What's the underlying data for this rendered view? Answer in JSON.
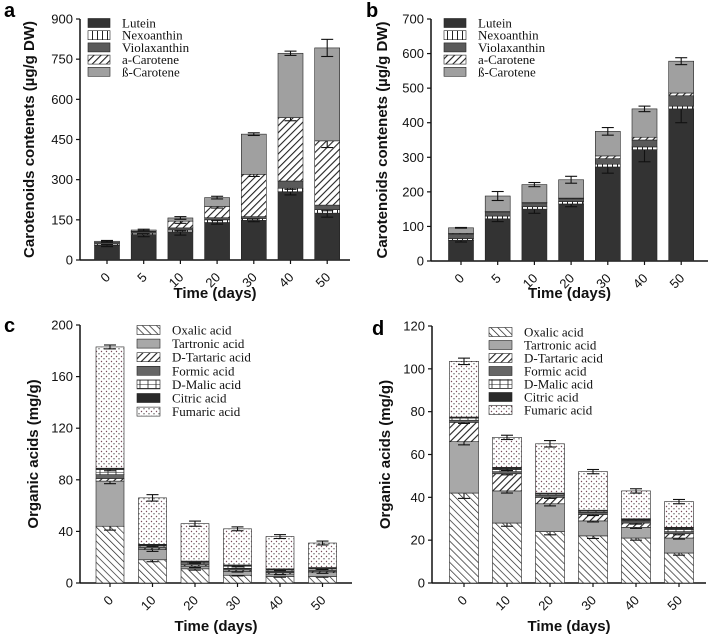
{
  "chart_data": [
    {
      "panel": "a",
      "type": "bar",
      "stacked": true,
      "title": "",
      "xlabel": "Time (days)",
      "ylabel": "Carotenoids contenets (µg/g DW)",
      "ylim": [
        0,
        900
      ],
      "yticks": [
        0,
        150,
        300,
        450,
        600,
        750,
        900
      ],
      "categories": [
        "0",
        "5",
        "10",
        "20",
        "30",
        "40",
        "50"
      ],
      "legend_position": "top-left",
      "series": [
        {
          "name": "Lutein",
          "fill": "#333333",
          "pattern": "solid",
          "values": [
            55,
            95,
            105,
            140,
            148,
            255,
            175
          ],
          "error": [
            5,
            8,
            12,
            6,
            5,
            12,
            15
          ]
        },
        {
          "name": "Nexoanthin",
          "fill": "#ffffff",
          "pattern": "vertical-lines",
          "values": [
            5,
            5,
            7,
            10,
            7,
            13,
            13
          ],
          "error": [
            2,
            2,
            3,
            3,
            2,
            4,
            4
          ]
        },
        {
          "name": "Violaxanthin",
          "fill": "#5a5a5a",
          "pattern": "solid",
          "values": [
            5,
            5,
            8,
            8,
            7,
            27,
            17
          ],
          "error": [
            0,
            0,
            0,
            0,
            0,
            0,
            0
          ]
        },
        {
          "name": "a-Carotene",
          "fill": "#ffffff",
          "pattern": "diagonal-hatch",
          "values": [
            0,
            2,
            25,
            42,
            158,
            237,
            240
          ],
          "error": [
            0,
            0,
            8,
            6,
            8,
            12,
            25
          ]
        },
        {
          "name": "ß-Carotene",
          "fill": "#a0a0a0",
          "pattern": "solid",
          "values": [
            5,
            5,
            12,
            33,
            150,
            240,
            347
          ],
          "error": [
            3,
            3,
            5,
            5,
            5,
            8,
            32
          ]
        }
      ]
    },
    {
      "panel": "b",
      "type": "bar",
      "stacked": true,
      "title": "",
      "xlabel": "Time (days)",
      "ylabel": "Carotenoids contenets (µg/g DW)",
      "ylim": [
        0,
        700
      ],
      "yticks": [
        0,
        100,
        200,
        300,
        400,
        500,
        600,
        700
      ],
      "categories": [
        "0",
        "5",
        "10",
        "20",
        "30",
        "40",
        "50"
      ],
      "legend_position": "top-left",
      "series": [
        {
          "name": "Lutein",
          "fill": "#333333",
          "pattern": "solid",
          "values": [
            60,
            122,
            150,
            165,
            272,
            322,
            440
          ],
          "error": [
            5,
            8,
            12,
            8,
            18,
            35,
            40
          ]
        },
        {
          "name": "Nexoanthin",
          "fill": "#ffffff",
          "pattern": "vertical-lines",
          "values": [
            5,
            8,
            7,
            7,
            8,
            8,
            8
          ],
          "error": [
            0,
            0,
            0,
            0,
            0,
            0,
            0
          ]
        },
        {
          "name": "Violaxanthin",
          "fill": "#5a5a5a",
          "pattern": "solid",
          "values": [
            13,
            12,
            11,
            8,
            16,
            20,
            30
          ],
          "error": [
            0,
            0,
            0,
            0,
            0,
            0,
            0
          ]
        },
        {
          "name": "a-Carotene",
          "fill": "#ffffff",
          "pattern": "diagonal-hatch",
          "values": [
            2,
            1,
            1,
            2,
            8,
            8,
            8
          ],
          "error": [
            0,
            0,
            0,
            0,
            0,
            0,
            0
          ]
        },
        {
          "name": "ß-Carotene",
          "fill": "#a0a0a0",
          "pattern": "solid",
          "values": [
            16,
            45,
            52,
            53,
            71,
            82,
            92
          ],
          "error": [
            1,
            13,
            6,
            10,
            11,
            8,
            10
          ]
        }
      ]
    },
    {
      "panel": "c",
      "type": "bar",
      "stacked": true,
      "title": "",
      "xlabel": "Time (days)",
      "ylabel": "Organic acids (mg/g)",
      "ylim": [
        0,
        200
      ],
      "yticks": [
        0,
        40,
        80,
        120,
        160,
        200
      ],
      "categories": [
        "0",
        "10",
        "20",
        "30",
        "40",
        "50"
      ],
      "legend_position": "top-center",
      "series": [
        {
          "name": "Oxalic acid",
          "fill": "#ffffff",
          "pattern": "back-diagonal-hatch",
          "values": [
            44,
            18,
            11,
            6,
            5,
            5
          ],
          "error": [
            3,
            1.5,
            1,
            0.5,
            0.5,
            0.5
          ]
        },
        {
          "name": "Tartronic acid",
          "fill": "#a8a8a8",
          "pattern": "solid",
          "values": [
            35,
            8,
            2,
            3,
            2,
            3
          ],
          "error": [
            2,
            1.5,
            1,
            0.5,
            0.5,
            0.5
          ]
        },
        {
          "name": "D-Tartaric acid",
          "fill": "#ffffff",
          "pattern": "diagonal-hatch",
          "values": [
            2,
            1,
            1,
            1,
            1,
            1
          ],
          "error": [
            0,
            0,
            0,
            0,
            0,
            0
          ]
        },
        {
          "name": "Formic acid",
          "fill": "#666666",
          "pattern": "solid",
          "values": [
            3,
            1,
            1,
            1,
            1,
            1
          ],
          "error": [
            0,
            0,
            0,
            0,
            0,
            0
          ]
        },
        {
          "name": "D-Malic acid",
          "fill": "#ffffff",
          "pattern": "brick",
          "values": [
            4,
            1,
            1,
            2,
            1,
            1
          ],
          "error": [
            1,
            0.5,
            0.5,
            0.5,
            0.5,
            0.5
          ]
        },
        {
          "name": "Citric acid",
          "fill": "#2a2a2a",
          "pattern": "solid",
          "values": [
            1,
            1,
            1,
            1,
            1,
            1
          ],
          "error": [
            0,
            0,
            0,
            0,
            0,
            0
          ]
        },
        {
          "name": "Fumaric acid",
          "fill": "#ffffff",
          "pattern": "dots",
          "values": [
            94,
            36,
            29,
            28,
            25,
            19
          ],
          "error": [
            1.5,
            2.5,
            2,
            1.5,
            1.5,
            1.5
          ]
        }
      ]
    },
    {
      "panel": "d",
      "type": "bar",
      "stacked": true,
      "title": "",
      "xlabel": "Time (days)",
      "ylabel": "Organic acids (mg/g)",
      "ylim": [
        0,
        120
      ],
      "yticks": [
        0,
        20,
        40,
        60,
        80,
        100,
        120
      ],
      "categories": [
        "0",
        "10",
        "20",
        "30",
        "40",
        "50"
      ],
      "legend_position": "top-center",
      "series": [
        {
          "name": "Oxalic acid",
          "fill": "#ffffff",
          "pattern": "back-diagonal-hatch",
          "values": [
            42,
            28,
            24,
            22,
            21,
            14
          ],
          "error": [
            2.5,
            1.5,
            1.5,
            1.2,
            1,
            1
          ]
        },
        {
          "name": "Tartronic acid",
          "fill": "#a8a8a8",
          "pattern": "solid",
          "values": [
            24,
            15,
            13,
            7,
            5,
            7
          ],
          "error": [
            1.5,
            1,
            1,
            0.5,
            0.5,
            0.5
          ]
        },
        {
          "name": "D-Tartaric acid",
          "fill": "#ffffff",
          "pattern": "diagonal-hatch",
          "values": [
            9,
            8,
            3,
            3,
            2,
            2
          ],
          "error": [
            0.5,
            0.5,
            0.5,
            0.5,
            0.5,
            0.5
          ]
        },
        {
          "name": "Formic acid",
          "fill": "#666666",
          "pattern": "solid",
          "values": [
            1,
            1,
            1,
            1,
            1,
            1
          ],
          "error": [
            0,
            0,
            0,
            0,
            0,
            0
          ]
        },
        {
          "name": "D-Malic acid",
          "fill": "#ffffff",
          "pattern": "brick",
          "values": [
            1,
            1,
            0.5,
            0.5,
            0.5,
            1
          ],
          "error": [
            0,
            0.5,
            0,
            0,
            0,
            0
          ]
        },
        {
          "name": "Citric acid",
          "fill": "#2a2a2a",
          "pattern": "solid",
          "values": [
            0.5,
            1,
            0.5,
            0.5,
            0.5,
            1
          ],
          "error": [
            0,
            0,
            0,
            0,
            0,
            0
          ]
        },
        {
          "name": "Fumaric acid",
          "fill": "#ffffff",
          "pattern": "dots",
          "values": [
            26,
            14,
            23,
            18,
            13,
            12
          ],
          "error": [
            1.5,
            1,
            1.5,
            1,
            1,
            1
          ]
        }
      ]
    }
  ]
}
